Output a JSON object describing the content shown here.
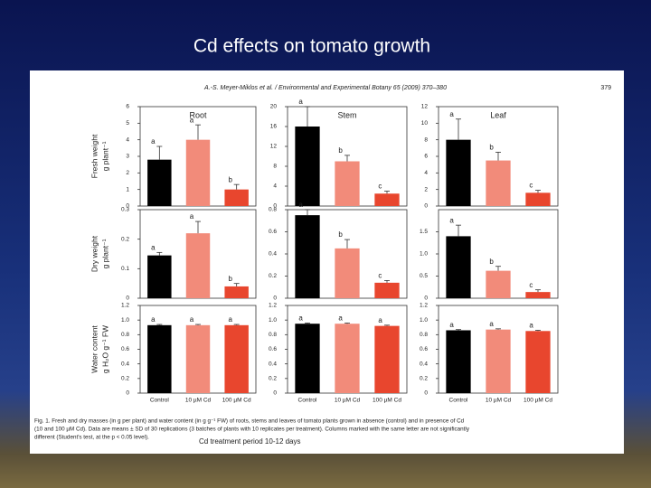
{
  "slide_title": "Cd effects on tomato growth",
  "figure": {
    "header": "A.-S. Meyer-Miklos et al. / Environmental and Experimental Botany 65 (2009) 370–380",
    "page": "379",
    "caption": [
      "Fig. 1. Fresh and dry masses (in g per plant) and water content (in g g⁻¹ FW) of roots, stems and leaves of tomato plants grown in absence (control) and in presence of Cd",
      "(10 and 100 µM Cd). Data are means ± SD of 30 replications (3 batches of plants with 10 replicates per treatment). Columns marked with the same letter are not significantly",
      "different (Student's test, at the p < 0.05 level)."
    ],
    "note": "Cd treatment period 10-12 days"
  },
  "chart_data": [
    {
      "type": "bar",
      "title": "Root",
      "ylabel": [
        "Fresh weight",
        "g plant⁻¹"
      ],
      "categories": [
        null,
        null,
        null
      ],
      "values": [
        2.8,
        4.0,
        1.0
      ],
      "errors": [
        0.8,
        0.9,
        0.3
      ],
      "letters": [
        "a",
        "a",
        "b"
      ],
      "colors": [
        "#000000",
        "#f28b7a",
        "#e8462e"
      ],
      "ylim": [
        0,
        6
      ],
      "yticks": [
        0,
        1,
        2,
        3,
        4,
        5,
        6
      ]
    },
    {
      "type": "bar",
      "title": "Stem",
      "categories": [
        null,
        null,
        null
      ],
      "values": [
        16,
        9,
        2.5
      ],
      "errors": [
        4,
        1.2,
        0.5
      ],
      "letters": [
        "a",
        "b",
        "c"
      ],
      "colors": [
        "#000000",
        "#f28b7a",
        "#e8462e"
      ],
      "ylim": [
        0,
        20
      ],
      "yticks": [
        0,
        4,
        8,
        12,
        16,
        20
      ]
    },
    {
      "type": "bar",
      "title": "Leaf",
      "categories": [
        null,
        null,
        null
      ],
      "values": [
        8,
        5.5,
        1.6
      ],
      "errors": [
        2.5,
        1.0,
        0.3
      ],
      "letters": [
        "a",
        "b",
        "c"
      ],
      "colors": [
        "#000000",
        "#f28b7a",
        "#e8462e"
      ],
      "ylim": [
        0,
        12
      ],
      "yticks": [
        0,
        2,
        4,
        6,
        8,
        10,
        12
      ]
    },
    {
      "type": "bar",
      "ylabel": [
        "Dry weight",
        "g plant⁻¹"
      ],
      "categories": [
        null,
        null,
        null
      ],
      "values": [
        0.145,
        0.22,
        0.04
      ],
      "errors": [
        0.01,
        0.04,
        0.01
      ],
      "letters": [
        "a",
        "a",
        "b"
      ],
      "colors": [
        "#000000",
        "#f28b7a",
        "#e8462e"
      ],
      "ylim": [
        0,
        0.3
      ],
      "yticks": [
        0,
        0.1,
        0.2,
        0.3
      ]
    },
    {
      "type": "bar",
      "categories": [
        null,
        null,
        null
      ],
      "values": [
        0.75,
        0.45,
        0.14
      ],
      "errors": [
        0.05,
        0.08,
        0.02
      ],
      "letters": [
        "a",
        "b",
        "c"
      ],
      "colors": [
        "#000000",
        "#f28b7a",
        "#e8462e"
      ],
      "ylim": [
        0,
        0.8
      ],
      "yticks": [
        0,
        0.2,
        0.4,
        0.6,
        0.8
      ]
    },
    {
      "type": "bar",
      "categories": [
        null,
        null,
        null
      ],
      "values": [
        1.4,
        0.62,
        0.14
      ],
      "errors": [
        0.25,
        0.1,
        0.05
      ],
      "letters": [
        "a",
        "b",
        "c"
      ],
      "colors": [
        "#000000",
        "#f28b7a",
        "#e8462e"
      ],
      "ylim": [
        0,
        2
      ],
      "yticks": [
        0,
        0.5,
        {
          "value": 1,
          "label": "1.0"
        },
        1.5
      ]
    },
    {
      "type": "bar",
      "ylabel": [
        "Water content",
        "g H₂O g⁻¹ FW"
      ],
      "categories": [
        "Control",
        "10 µM Cd",
        "100 µM Cd"
      ],
      "values": [
        0.93,
        0.93,
        0.93
      ],
      "errors": [
        0.01,
        0.01,
        0.01
      ],
      "letters": [
        "a",
        "a",
        "a"
      ],
      "colors": [
        "#000000",
        "#f28b7a",
        "#e8462e"
      ],
      "ylim": [
        0,
        1.2
      ],
      "yticks": [
        0,
        0.2,
        0.4,
        0.6,
        0.8,
        {
          "value": 1,
          "label": "1.0"
        },
        1.2
      ]
    },
    {
      "type": "bar",
      "categories": [
        "Control",
        "10 µM Cd",
        "100 µM Cd"
      ],
      "values": [
        0.95,
        0.95,
        0.92
      ],
      "errors": [
        0.01,
        0.01,
        0.01
      ],
      "letters": [
        "a",
        "a",
        "a"
      ],
      "colors": [
        "#000000",
        "#f28b7a",
        "#e8462e"
      ],
      "ylim": [
        0,
        1.2
      ],
      "yticks": [
        0,
        0.2,
        0.4,
        0.6,
        0.8,
        {
          "value": 1,
          "label": "1.0"
        },
        1.2
      ]
    },
    {
      "type": "bar",
      "categories": [
        "Control",
        "10 µM Cd",
        "100 µM Cd"
      ],
      "values": [
        0.86,
        0.87,
        0.85
      ],
      "errors": [
        0.01,
        0.01,
        0.01
      ],
      "letters": [
        "a",
        "a",
        "a"
      ],
      "colors": [
        "#000000",
        "#f28b7a",
        "#e8462e"
      ],
      "ylim": [
        0,
        1.2
      ],
      "yticks": [
        0,
        0.2,
        0.4,
        0.6,
        0.8,
        {
          "value": 1,
          "label": "1.0"
        },
        1.2
      ]
    }
  ]
}
